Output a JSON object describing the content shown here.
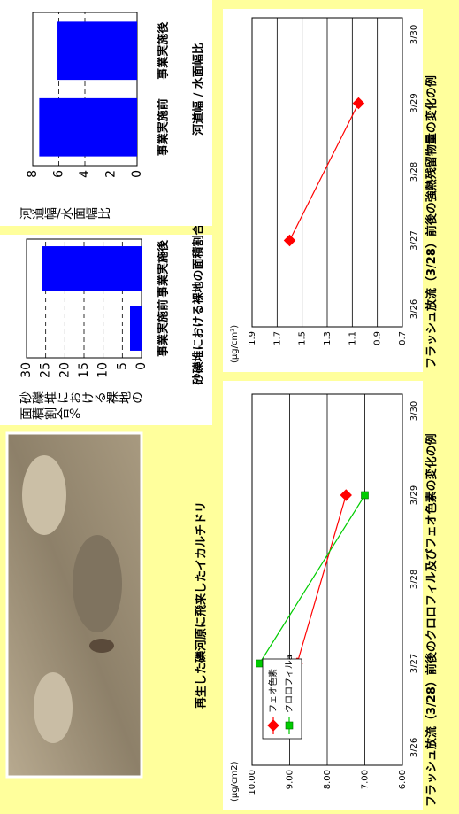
{
  "photo": {
    "caption": "再生した礫河原に飛来したイカルチドリ"
  },
  "chart_data": [
    {
      "type": "bar",
      "title": "砂礫堆における裸地の面積割合%",
      "ylabel": "砂礫堆における裸地の面積割合%",
      "categories": [
        "事業実施前",
        "事業実施後"
      ],
      "values": [
        3,
        26
      ],
      "color": "#0000ff",
      "ylim": [
        0,
        30
      ],
      "yticks": [
        0,
        5,
        10,
        15,
        20,
        25,
        30
      ],
      "grid": "dashed"
    },
    {
      "type": "bar",
      "title": "河道幅 / 水面幅比",
      "ylabel": "河道幅/水面幅比",
      "categories": [
        "事業実施前",
        "事業実施後"
      ],
      "values": [
        7.5,
        6.1
      ],
      "color": "#0000ff",
      "ylim": [
        0,
        8
      ],
      "yticks": [
        0,
        2,
        4,
        6,
        8
      ],
      "grid": "dashed"
    },
    {
      "type": "line",
      "title": "フラッシュ放流（3/28）前後のクロロフィル及びフェオ色素の変化の例",
      "ylabel": "(μg/cm2)",
      "categories": [
        "3/26",
        "3/27",
        "3/28",
        "3/29",
        "3/30"
      ],
      "series": [
        {
          "name": "フェオ色素",
          "color": "#ff0000",
          "marker": "diamond",
          "x": [
            "3/27",
            "3/29"
          ],
          "values": [
            8.8,
            7.5
          ]
        },
        {
          "name": "クロロフィルa",
          "color": "#00cc00",
          "marker": "square",
          "x": [
            "3/27",
            "3/29"
          ],
          "values": [
            9.8,
            7.0
          ]
        }
      ],
      "ylim": [
        6,
        10
      ],
      "yticks": [
        {
          "value": 6,
          "label": "6.00"
        },
        {
          "value": 7,
          "label": "7.00"
        },
        {
          "value": 8,
          "label": "8.00"
        },
        {
          "value": 9,
          "label": "9.00"
        },
        {
          "value": 10,
          "label": "10.00"
        }
      ],
      "grid": "solid",
      "legend": "upper left"
    },
    {
      "type": "line",
      "title": "フラッシュ放流（3/28）前後の強熱残留物量の変化の例",
      "ylabel": "(μg/cm²)",
      "categories": [
        "3/26",
        "3/27",
        "3/28",
        "3/29",
        "3/30"
      ],
      "series": [
        {
          "color": "#ff0000",
          "marker": "diamond",
          "x": [
            "3/27",
            "3/29"
          ],
          "values": [
            1.6,
            1.05
          ]
        }
      ],
      "ylim": [
        0.7,
        1.9
      ],
      "yticks": [
        0.7,
        0.9,
        1.1,
        1.3,
        1.5,
        1.7,
        1.9
      ],
      "grid": "solid"
    }
  ]
}
